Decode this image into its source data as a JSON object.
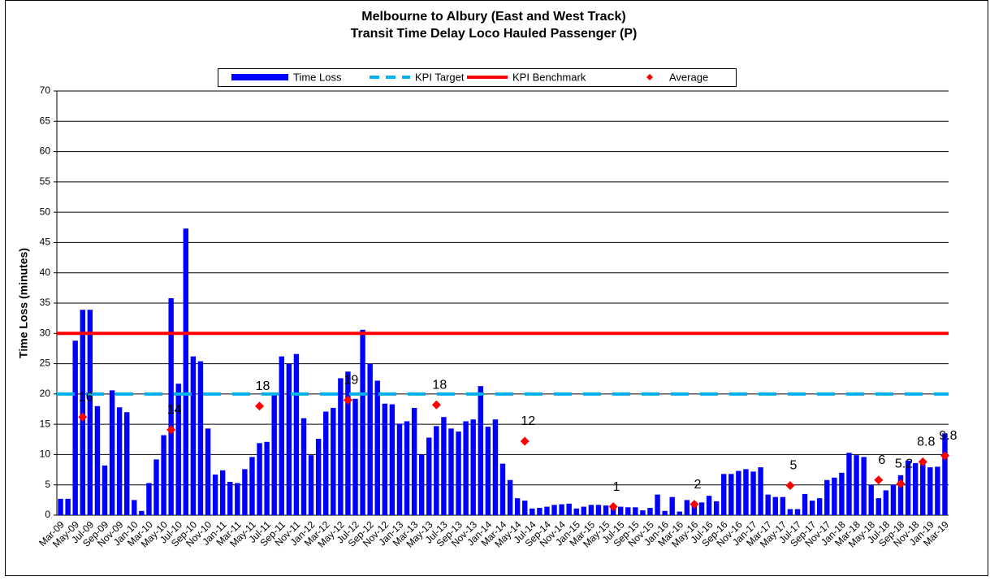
{
  "chart_data": {
    "type": "bar",
    "title": [
      "Melbourne to Albury (East and West Track)",
      "Transit Time Delay Loco Hauled Passenger (P)"
    ],
    "y_label": "Time Loss (minutes)",
    "categories": [
      "Mar-09",
      null,
      "May-09",
      null,
      "Jul-09",
      null,
      "Sep-09",
      null,
      "Nov-09",
      null,
      "Jan-10",
      null,
      "Mar-10",
      null,
      "May-10",
      null,
      "Jul-10",
      null,
      "Sep-10",
      null,
      "Nov-10",
      null,
      "Jan-11",
      null,
      "Mar-11",
      null,
      "May-11",
      null,
      "Jul-11",
      null,
      "Sep-11",
      null,
      "Nov-11",
      null,
      "Jan-12",
      null,
      "Mar-12",
      null,
      "May-12",
      null,
      "Jul-12",
      null,
      "Sep-12",
      null,
      "Nov-12",
      null,
      "Jan-13",
      null,
      "Mar-13",
      null,
      "May-13",
      null,
      "Jul-13",
      null,
      "Sep-13",
      null,
      "Nov-13",
      null,
      "Jan-14",
      null,
      "Mar-14",
      null,
      "May-14",
      null,
      "Jul-14",
      null,
      "Sep-14",
      null,
      "Nov-14",
      null,
      "Jan-15",
      null,
      "Mar-15",
      null,
      "May-15",
      null,
      "Jul-15",
      null,
      "Sep-15",
      null,
      "Nov-15",
      null,
      "Jan-16",
      null,
      "Mar-16",
      null,
      "May-16",
      null,
      "Jul-16",
      null,
      "Sep-16",
      null,
      "Nov-16",
      null,
      "Jan-17",
      null,
      "Mar-17",
      null,
      "May-17",
      null,
      "Jul-17",
      null,
      "Sep-17",
      null,
      "Nov-17",
      null,
      "Jan-18",
      null,
      "Mar-18",
      null,
      "May-18",
      null,
      "Jul-18",
      null,
      "Sep-18",
      null,
      "Nov-18",
      null,
      "Jan-19",
      null,
      "Mar-19"
    ],
    "series": [
      {
        "name": "Time Loss",
        "type": "bar",
        "color": "#0000ff",
        "values": [
          2.7,
          2.7,
          28.8,
          33.9,
          33.9,
          18,
          8.2,
          20.6,
          17.8,
          17,
          2.5,
          0.7,
          5.3,
          9.2,
          13.2,
          35.8,
          21.7,
          47.3,
          26.2,
          25.4,
          14.3,
          6.7,
          7.4,
          5.5,
          5.3,
          7.6,
          9.6,
          11.9,
          12.1,
          20,
          26.2,
          25,
          26.6,
          16,
          9.9,
          12.6,
          17.1,
          17.7,
          22.6,
          23.7,
          19.2,
          30.6,
          25,
          22.2,
          18.4,
          18.3,
          15.1,
          15.5,
          17.7,
          10,
          12.8,
          14.7,
          16.2,
          14.3,
          13.8,
          15.5,
          15.8,
          21.3,
          14.6,
          15.8,
          8.5,
          5.8,
          2.8,
          2.4,
          1.1,
          1.2,
          1.4,
          1.7,
          1.8,
          1.9,
          1.1,
          1.4,
          1.7,
          1.7,
          1.6,
          1.6,
          1.4,
          1.3,
          1.3,
          0.8,
          1.2,
          3.4,
          0.7,
          3,
          0.6,
          2.5,
          2.2,
          2.1,
          3.2,
          2.3,
          6.8,
          6.8,
          7.3,
          7.6,
          7.2,
          7.9,
          3.4,
          3,
          3,
          1,
          1,
          3.5,
          2.4,
          2.8,
          5.8,
          6.2,
          7,
          10.3,
          9.9,
          9.6,
          5,
          2.8,
          4.1,
          5,
          6.6,
          9,
          8.6,
          9,
          7.9,
          8,
          13.5
        ]
      },
      {
        "name": "KPI Target",
        "type": "hline",
        "color": "#00b0f0",
        "dashed": true,
        "value": 20
      },
      {
        "name": "KPI Benchmark",
        "type": "hline",
        "color": "#ff0000",
        "value": 30
      },
      {
        "name": "Average",
        "type": "scatter",
        "color": "#ff0000",
        "values": [
          null,
          null,
          null,
          16.2,
          null,
          null,
          null,
          null,
          null,
          null,
          null,
          null,
          null,
          null,
          null,
          14.1,
          null,
          null,
          null,
          null,
          null,
          null,
          null,
          null,
          null,
          null,
          null,
          18,
          null,
          null,
          null,
          null,
          null,
          null,
          null,
          null,
          null,
          null,
          null,
          19,
          null,
          null,
          null,
          null,
          null,
          null,
          null,
          null,
          null,
          null,
          null,
          18.2,
          null,
          null,
          null,
          null,
          null,
          null,
          null,
          null,
          null,
          null,
          null,
          12.2,
          null,
          null,
          null,
          null,
          null,
          null,
          null,
          null,
          null,
          null,
          null,
          1.4,
          null,
          null,
          null,
          null,
          null,
          null,
          null,
          null,
          null,
          null,
          1.8,
          null,
          null,
          null,
          null,
          null,
          null,
          null,
          null,
          null,
          null,
          null,
          null,
          4.9,
          null,
          null,
          null,
          null,
          null,
          null,
          null,
          null,
          null,
          null,
          null,
          5.8,
          null,
          null,
          5.2,
          null,
          null,
          8.8,
          null,
          null,
          9.8
        ],
        "value_labels": [
          null,
          null,
          null,
          "16",
          null,
          null,
          null,
          null,
          null,
          null,
          null,
          null,
          null,
          null,
          null,
          "14",
          null,
          null,
          null,
          null,
          null,
          null,
          null,
          null,
          null,
          null,
          null,
          "18",
          null,
          null,
          null,
          null,
          null,
          null,
          null,
          null,
          null,
          null,
          null,
          "19",
          null,
          null,
          null,
          null,
          null,
          null,
          null,
          null,
          null,
          null,
          null,
          "18",
          null,
          null,
          null,
          null,
          null,
          null,
          null,
          null,
          null,
          null,
          null,
          "12",
          null,
          null,
          null,
          null,
          null,
          null,
          null,
          null,
          null,
          null,
          null,
          "1",
          null,
          null,
          null,
          null,
          null,
          null,
          null,
          null,
          null,
          null,
          "2",
          null,
          null,
          null,
          null,
          null,
          null,
          null,
          null,
          null,
          null,
          null,
          null,
          "5",
          null,
          null,
          null,
          null,
          null,
          null,
          null,
          null,
          null,
          null,
          null,
          "6",
          null,
          null,
          "5.2",
          null,
          null,
          "8.8",
          null,
          null,
          "9.8"
        ]
      }
    ],
    "ylim": [
      0,
      70
    ],
    "yticks": [
      0,
      5,
      10,
      15,
      20,
      25,
      30,
      35,
      40,
      45,
      50,
      55,
      60,
      65,
      70
    ],
    "grid": true,
    "legend": "top"
  }
}
